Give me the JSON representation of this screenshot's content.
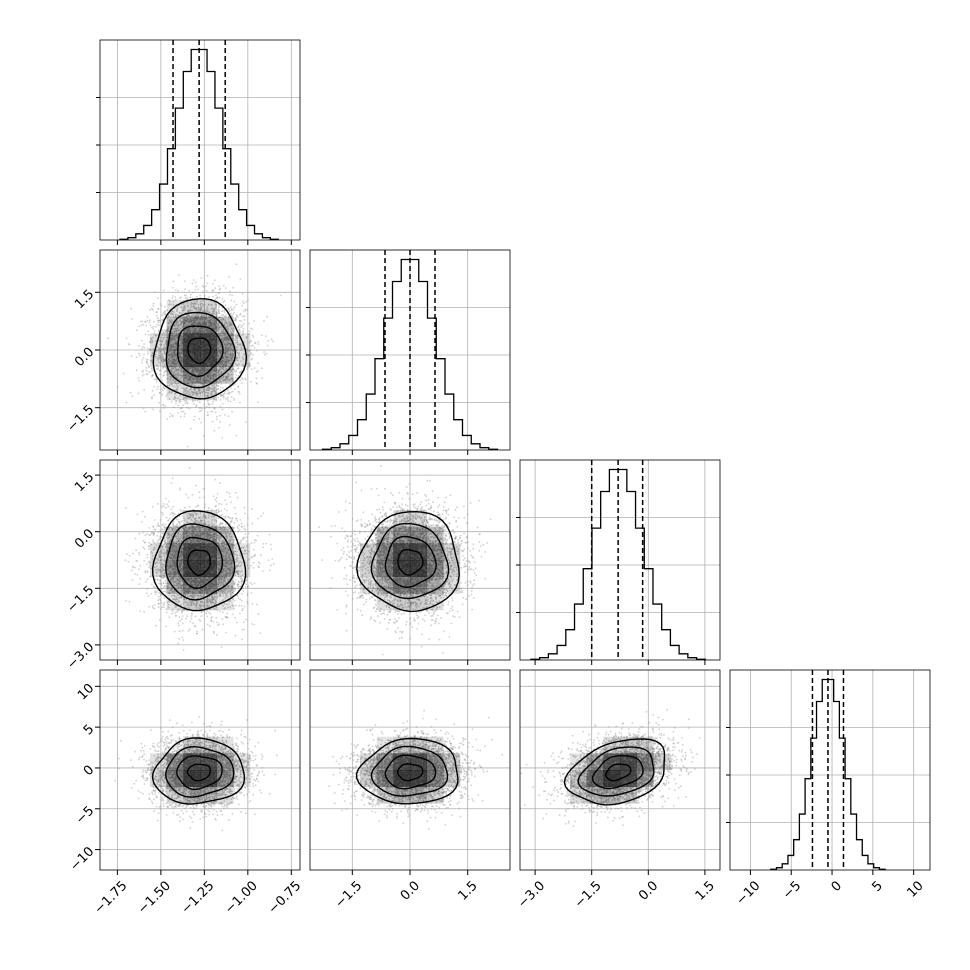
{
  "chart_data": {
    "type": "corner",
    "title": "",
    "grid": true,
    "colors": {
      "line": "#000000",
      "grid": "#b0b0b0",
      "points": "#9a9a9a",
      "density": "#000000"
    },
    "parameters": [
      {
        "name": "",
        "range": [
          -1.85,
          -0.7
        ],
        "mean": -1.28,
        "sd": 0.13,
        "quantiles": [
          -1.43,
          -1.28,
          -1.13
        ],
        "ticks": [
          -1.75,
          -1.5,
          -1.25,
          -1.0,
          -0.75
        ],
        "tick_labels": [
          "−1.75",
          "−1.50",
          "−1.25",
          "−1.00",
          "−0.75"
        ]
      },
      {
        "name": "",
        "range": [
          -2.6,
          2.6
        ],
        "mean": 0.0,
        "sd": 0.65,
        "quantiles": [
          -0.65,
          0.0,
          0.65
        ],
        "ticks": [
          -1.5,
          0.0,
          1.5
        ],
        "tick_labels": [
          "−1.5",
          "0.0",
          "1.5"
        ]
      },
      {
        "name": "",
        "range": [
          -3.4,
          1.9
        ],
        "mean": -0.8,
        "sd": 0.66,
        "quantiles": [
          -1.5,
          -0.8,
          -0.15
        ],
        "ticks": [
          -3.0,
          -1.5,
          0.0,
          1.5
        ],
        "tick_labels": [
          "−3.0",
          "−1.5",
          "0.0",
          "1.5"
        ]
      },
      {
        "name": "",
        "range": [
          -12.5,
          12.0
        ],
        "mean": -0.5,
        "sd": 2.0,
        "quantiles": [
          -2.4,
          -0.5,
          1.4
        ],
        "ticks": [
          -10,
          -5,
          0,
          5,
          10
        ],
        "tick_labels": [
          "−10",
          "−5",
          "0",
          "5",
          "10"
        ]
      }
    ],
    "correlations": {
      "1-0": 0.0,
      "2-0": 0.0,
      "2-1": 0.0,
      "3-0": 0.05,
      "3-1": 0.05,
      "3-2": 0.3
    },
    "contour_levels_sigma": [
      0.5,
      1.0,
      1.5,
      2.0
    ],
    "samples_per_panel": 4000,
    "hist_bins": 20
  }
}
